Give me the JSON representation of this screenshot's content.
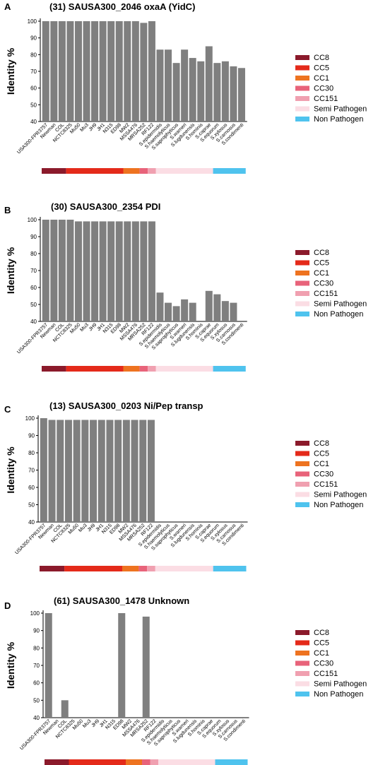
{
  "legend": [
    {
      "label": "CC8",
      "color": "#8b1a2b"
    },
    {
      "label": "CC5",
      "color": "#e42a1a"
    },
    {
      "label": "CC1",
      "color": "#ee7320"
    },
    {
      "label": "CC30",
      "color": "#e8637a"
    },
    {
      "label": "CC151",
      "color": "#f0a0b0"
    },
    {
      "label": "Semi Pathogen",
      "color": "#fbdde4"
    },
    {
      "label": "Non Pathogen",
      "color": "#4fc3ee"
    }
  ],
  "strip_groups": [
    {
      "label": "CC8",
      "count": 3
    },
    {
      "label": "CC5",
      "count": 7
    },
    {
      "label": "CC1",
      "count": 2
    },
    {
      "label": "CC30",
      "count": 1
    },
    {
      "label": "CC151",
      "count": 1
    },
    {
      "label": "Semi Pathogen",
      "count": 7
    },
    {
      "label": "Non Pathogen",
      "count": 4
    }
  ],
  "bar_color": "#7f7f7f",
  "chart_data": [
    {
      "type": "bar",
      "panel_label": "A",
      "title": "(31)  SAUSA300_2046   oxaA (YidC)",
      "ylabel": "Identity %",
      "ylim": [
        40,
        100
      ],
      "yticks": [
        40,
        50,
        60,
        70,
        80,
        90,
        100
      ],
      "categories": [
        "USA300-FPR3757",
        "Newman",
        "COL",
        "NCTC8325",
        "Mu50",
        "Mu3",
        "JH9",
        "JH1",
        "N315",
        "ED98",
        "MW2",
        "MSSA476",
        "MRSA252",
        "RF122",
        "S.epidermidis",
        "S.haemolyticus",
        "S.saprophyticus",
        "S.warneri",
        "S.lugdunensis",
        "S.hominis",
        "S.caprae",
        "S.equorum",
        "S.xylosus",
        "S.carnosus",
        "S.condimenti"
      ],
      "values": [
        100,
        100,
        100,
        100,
        100,
        100,
        100,
        100,
        100,
        100,
        100,
        100,
        99,
        100,
        83,
        83,
        75,
        83,
        78,
        76,
        85,
        75,
        76,
        73,
        72
      ]
    },
    {
      "type": "bar",
      "panel_label": "B",
      "title": "(30)  SAUSA300_2354   PDI",
      "ylabel": "Identity %",
      "ylim": [
        40,
        100
      ],
      "yticks": [
        40,
        50,
        60,
        70,
        80,
        90,
        100
      ],
      "categories": [
        "USA300-FPR3757",
        "Newman",
        "COL",
        "NCTC8325",
        "Mu50",
        "Mu3",
        "JH9",
        "JH1",
        "N315",
        "ED98",
        "MW2",
        "MSSA476",
        "MRSA252",
        "RF122",
        "S.epidermidis",
        "S.haemolyticus",
        "S.saprophyticus",
        "S.warneri",
        "S.lugdunensis",
        "S.hominis",
        "S.caprae",
        "S.equorum",
        "S.xylosus",
        "S.carnosus",
        "S.condimenti"
      ],
      "values": [
        100,
        100,
        100,
        100,
        99,
        99,
        99,
        99,
        99,
        99,
        99,
        99,
        99,
        99,
        57,
        51,
        49,
        53,
        51,
        null,
        58,
        56,
        52,
        51,
        null
      ]
    },
    {
      "type": "bar",
      "panel_label": "C",
      "title": "(13)  SAUSA300_0203   Ni/Pep transp",
      "ylabel": "Identity %",
      "ylim": [
        40,
        100
      ],
      "yticks": [
        40,
        50,
        60,
        70,
        80,
        90,
        100
      ],
      "categories": [
        "USA300-FPR3757",
        "Newman",
        "COL",
        "NCTC8325",
        "Mu50",
        "Mu3",
        "JH9",
        "JH1",
        "N315",
        "ED98",
        "MW2",
        "MSSA476",
        "MRSA252",
        "RF122",
        "S.epidermidis",
        "S.haemolyticus",
        "S.saprophyticus",
        "S.warneri",
        "S.lugdunensis",
        "S.hominis",
        "S.caprae",
        "S.equorum",
        "S.xylosus",
        "S.carnosus",
        "S.condimenti"
      ],
      "values": [
        100,
        99,
        99,
        99,
        99,
        99,
        99,
        99,
        99,
        99,
        99,
        99,
        99,
        99,
        null,
        null,
        null,
        null,
        null,
        null,
        null,
        null,
        null,
        null,
        null
      ]
    },
    {
      "type": "bar",
      "panel_label": "D",
      "title": "(61)   SAUSA300_1478    Unknown",
      "ylabel": "Identity %",
      "ylim": [
        40,
        100
      ],
      "yticks": [
        40,
        50,
        60,
        70,
        80,
        90,
        100
      ],
      "categories": [
        "USA300-FPR3757",
        "Newman",
        "COL",
        "NCTC8325",
        "Mu50",
        "Mu3",
        "JH9",
        "JH1",
        "N315",
        "ED98",
        "MW2",
        "MSSA476",
        "MRSA252",
        "RF122",
        "S.epidermidis",
        "S.haemolyticus",
        "S.saprophyticus",
        "S.warneri",
        "S.lugdunensis",
        "S.hominis",
        "S.caprae",
        "S.equorum",
        "S.xylosus",
        "S.carnosus",
        "S.condimenti"
      ],
      "values": [
        100,
        null,
        50,
        null,
        null,
        null,
        null,
        null,
        null,
        100,
        null,
        null,
        98,
        null,
        null,
        null,
        null,
        null,
        null,
        null,
        null,
        null,
        null,
        null,
        null
      ]
    }
  ]
}
